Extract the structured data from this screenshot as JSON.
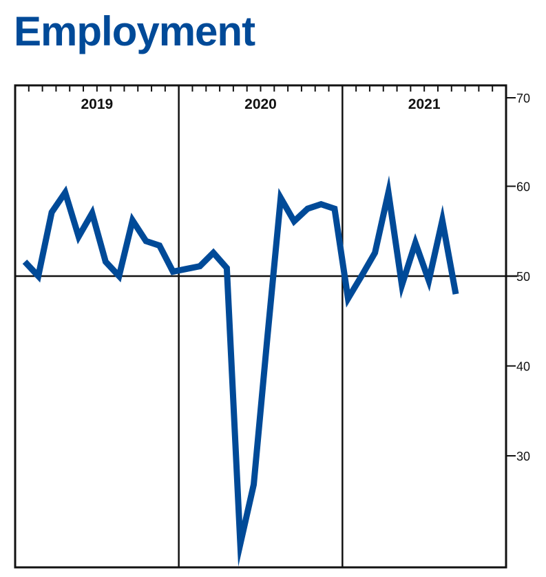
{
  "title": "Employment",
  "chart_data": {
    "type": "line",
    "title": "Employment",
    "xlabel": "",
    "ylabel": "",
    "ylim": [
      20,
      70
    ],
    "yticks": [
      30,
      40,
      50,
      60,
      70
    ],
    "reference_line": 50,
    "years": [
      "2019",
      "2020",
      "2021"
    ],
    "months_per_year": 12,
    "line_color": "#004a98",
    "series": [
      {
        "values": [
          51.6,
          50.0,
          57.1,
          59.3,
          54.4,
          57.0,
          51.6,
          50.0,
          56.2,
          53.9,
          53.4,
          50.5,
          50.8,
          51.1,
          52.6,
          50.9,
          20.2,
          26.8,
          43.0,
          58.7,
          56.1,
          57.5,
          58.0,
          57.5,
          47.5,
          50.0,
          52.6,
          59.3,
          49.0,
          53.7,
          49.5,
          56.2,
          48.0
        ]
      }
    ]
  }
}
